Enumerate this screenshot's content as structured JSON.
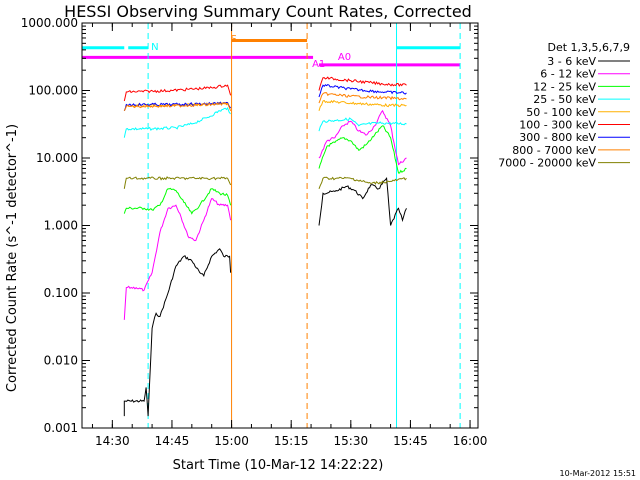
{
  "chart_data": {
    "type": "line",
    "title": "HESSI Observing Summary Count Rates, Corrected",
    "xlabel": "Start Time (10-Mar-12 14:22:22)",
    "ylabel": "Corrected Count Rate (s^-1 detector^-1)",
    "y_scale": "log",
    "ylim": [
      0.001,
      1000
    ],
    "xlim": [
      "14:22:22",
      "16:02:00"
    ],
    "x_ticks": [
      "14:30",
      "14:45",
      "15:00",
      "15:15",
      "15:30",
      "15:45",
      "16:00"
    ],
    "y_ticks": [
      "0.001",
      "0.010",
      "0.100",
      "1.000",
      "10.000",
      "100.000",
      "1000.000"
    ],
    "timestamp": "10-Mar-2012 15:51",
    "legend": {
      "position": "right",
      "title": "Det 1,3,5,6,7,9",
      "entries": [
        {
          "label": "3 - 6 keV",
          "color": "#000000"
        },
        {
          "label": "6 - 12 keV",
          "color": "#ff00ff"
        },
        {
          "label": "12 - 25 keV",
          "color": "#00ff00"
        },
        {
          "label": "25 - 50 keV",
          "color": "#00ffff"
        },
        {
          "label": "50 - 100 keV",
          "color": "#ffb000"
        },
        {
          "label": "100 - 300 keV",
          "color": "#ff0000"
        },
        {
          "label": "300 - 800 keV",
          "color": "#0000ff"
        },
        {
          "label": "800 - 7000 keV",
          "color": "#ff8000"
        },
        {
          "label": "7000 - 20000 keV",
          "color": "#808000"
        }
      ]
    },
    "annotations": [
      {
        "text": "N",
        "at": "14:39:00",
        "color": "#00ffff"
      },
      {
        "text": "S",
        "at": "14:59:00",
        "color": "#ff8000"
      },
      {
        "text": "A1",
        "at": "15:19:30",
        "color": "#ff00ff"
      },
      {
        "text": "A0",
        "at": "15:26:00",
        "color": "#ff00ff"
      }
    ],
    "state_bars": [
      {
        "color": "#00ffff",
        "value": 430,
        "segments": [
          [
            "14:22:22",
            "14:33:00"
          ],
          [
            "14:34:00",
            "14:39:00"
          ],
          [
            "15:41:30",
            "15:57:30"
          ]
        ]
      },
      {
        "color": "#ff8000",
        "value": 550,
        "segments": [
          [
            "15:00:00",
            "15:19:00"
          ]
        ]
      },
      {
        "color": "#ff00ff",
        "value": 310,
        "segments": [
          [
            "14:22:22",
            "15:20:30"
          ]
        ]
      },
      {
        "color": "#ff00ff",
        "value": 240,
        "segments": [
          [
            "15:22:00",
            "15:57:30"
          ]
        ]
      }
    ],
    "markers": [
      {
        "at": "14:22:22",
        "color": "#00ffff",
        "style": "solid"
      },
      {
        "at": "14:39:00",
        "color": "#00ffff",
        "style": "dashed"
      },
      {
        "at": "15:00:00",
        "color": "#ff8000",
        "style": "solid"
      },
      {
        "at": "15:19:00",
        "color": "#ff8000",
        "style": "dashed"
      },
      {
        "at": "15:41:30",
        "color": "#00ffff",
        "style": "solid"
      },
      {
        "at": "15:57:30",
        "color": "#00ffff",
        "style": "dashed"
      }
    ],
    "series": [
      {
        "name": "3 - 6 keV",
        "color": "#000000",
        "segments": [
          [
            [
              "14:33:00",
              0.0015
            ],
            [
              "14:33:00",
              0.0025
            ],
            [
              "14:38:00",
              0.0025
            ],
            [
              "14:38:30",
              0.004
            ],
            [
              "14:39:00",
              0.0015
            ],
            [
              "14:40:00",
              0.03
            ],
            [
              "14:41:00",
              0.05
            ],
            [
              "14:42:00",
              0.045
            ],
            [
              "14:44:00",
              0.1
            ],
            [
              "14:46:00",
              0.25
            ],
            [
              "14:48:00",
              0.35
            ],
            [
              "14:50:00",
              0.3
            ],
            [
              "14:52:00",
              0.2
            ],
            [
              "14:53:00",
              0.18
            ],
            [
              "14:55:00",
              0.35
            ],
            [
              "14:57:00",
              0.45
            ],
            [
              "14:58:00",
              0.35
            ],
            [
              "14:59:30",
              0.35
            ],
            [
              "14:59:45",
              0.2
            ]
          ],
          [
            [
              "15:22:00",
              1.0
            ],
            [
              "15:23:00",
              3.0
            ],
            [
              "15:26:00",
              3.2
            ],
            [
              "15:29:00",
              3.8
            ],
            [
              "15:31:00",
              3.3
            ],
            [
              "15:33:00",
              2.5
            ],
            [
              "15:35:00",
              4.0
            ],
            [
              "15:37:00",
              3.5
            ],
            [
              "15:39:00",
              5.0
            ],
            [
              "15:40:00",
              1.0
            ],
            [
              "15:42:00",
              1.8
            ],
            [
              "15:43:00",
              1.2
            ],
            [
              "15:44:00",
              1.8
            ]
          ]
        ]
      },
      {
        "name": "6 - 12 keV",
        "color": "#ff00ff",
        "segments": [
          [
            [
              "14:33:00",
              0.04
            ],
            [
              "14:33:30",
              0.12
            ],
            [
              "14:36:00",
              0.12
            ],
            [
              "14:38:00",
              0.11
            ],
            [
              "14:40:00",
              0.2
            ],
            [
              "14:42:00",
              0.8
            ],
            [
              "14:44:00",
              1.8
            ],
            [
              "14:46:00",
              2.0
            ],
            [
              "14:47:00",
              1.5
            ],
            [
              "14:49:00",
              0.7
            ],
            [
              "14:51:00",
              0.6
            ],
            [
              "14:53:00",
              1.2
            ],
            [
              "14:55:00",
              2.5
            ],
            [
              "14:57:00",
              2.0
            ],
            [
              "14:59:00",
              2.0
            ],
            [
              "14:59:45",
              1.2
            ]
          ],
          [
            [
              "15:22:00",
              10.0
            ],
            [
              "15:24:00",
              18.0
            ],
            [
              "15:26:00",
              20.0
            ],
            [
              "15:28:00",
              30.0
            ],
            [
              "15:30:00",
              35.0
            ],
            [
              "15:32:00",
              25.0
            ],
            [
              "15:34:00",
              22.0
            ],
            [
              "15:36:00",
              30.0
            ],
            [
              "15:38:00",
              50.0
            ],
            [
              "15:40:00",
              30.0
            ],
            [
              "15:42:00",
              8.0
            ],
            [
              "15:44:00",
              10.0
            ]
          ]
        ]
      },
      {
        "name": "12 - 25 keV",
        "color": "#00ff00",
        "segments": [
          [
            [
              "14:33:00",
              1.5
            ],
            [
              "14:33:30",
              1.8
            ],
            [
              "14:38:00",
              1.8
            ],
            [
              "14:40:00",
              1.7
            ],
            [
              "14:42:00",
              2.0
            ],
            [
              "14:44:00",
              3.5
            ],
            [
              "14:46:00",
              3.3
            ],
            [
              "14:48:00",
              2.2
            ],
            [
              "14:50:00",
              1.5
            ],
            [
              "14:52:00",
              2.0
            ],
            [
              "14:55:00",
              3.5
            ],
            [
              "14:57:00",
              3.0
            ],
            [
              "14:59:00",
              2.8
            ],
            [
              "14:59:45",
              2.0
            ]
          ],
          [
            [
              "15:22:00",
              7.0
            ],
            [
              "15:24:00",
              15.0
            ],
            [
              "15:26:00",
              17.0
            ],
            [
              "15:28:00",
              20.0
            ],
            [
              "15:30:00",
              18.0
            ],
            [
              "15:32:00",
              13.0
            ],
            [
              "15:34:00",
              16.0
            ],
            [
              "15:36:00",
              22.0
            ],
            [
              "15:38:00",
              30.0
            ],
            [
              "15:40:00",
              20.0
            ],
            [
              "15:42:00",
              6.0
            ],
            [
              "15:44:00",
              7.0
            ]
          ]
        ]
      },
      {
        "name": "25 - 50 keV",
        "color": "#00ffff",
        "segments": [
          [
            [
              "14:33:00",
              20.0
            ],
            [
              "14:33:30",
              27.0
            ],
            [
              "14:40:00",
              27.0
            ],
            [
              "14:46:00",
              28.0
            ],
            [
              "14:50:00",
              32.0
            ],
            [
              "14:54:00",
              40.0
            ],
            [
              "14:57:00",
              50.0
            ],
            [
              "14:59:00",
              55.0
            ],
            [
              "14:59:45",
              45.0
            ]
          ],
          [
            [
              "15:22:00",
              25.0
            ],
            [
              "15:23:00",
              35.0
            ],
            [
              "15:26:00",
              36.0
            ],
            [
              "15:30:00",
              38.0
            ],
            [
              "15:32:00",
              30.0
            ],
            [
              "15:34:00",
              32.0
            ],
            [
              "15:38:00",
              33.0
            ],
            [
              "15:44:00",
              32.0
            ]
          ]
        ]
      },
      {
        "name": "50 - 100 keV",
        "color": "#ffb000",
        "segments": [
          [
            [
              "14:33:00",
              50.0
            ],
            [
              "14:33:30",
              60.0
            ],
            [
              "14:45:00",
              60.0
            ],
            [
              "14:55:00",
              63.0
            ],
            [
              "14:59:00",
              66.0
            ],
            [
              "14:59:45",
              55.0
            ]
          ],
          [
            [
              "15:22:00",
              50.0
            ],
            [
              "15:23:00",
              70.0
            ],
            [
              "15:30:00",
              65.0
            ],
            [
              "15:40:00",
              60.0
            ],
            [
              "15:44:00",
              60.0
            ]
          ]
        ]
      },
      {
        "name": "100 - 300 keV",
        "color": "#ff0000",
        "segments": [
          [
            [
              "14:33:00",
              70.0
            ],
            [
              "14:33:30",
              95.0
            ],
            [
              "14:45:00",
              100.0
            ],
            [
              "14:55:00",
              110.0
            ],
            [
              "14:59:00",
              120.0
            ],
            [
              "14:59:45",
              85.0
            ]
          ],
          [
            [
              "15:22:00",
              100.0
            ],
            [
              "15:23:00",
              155.0
            ],
            [
              "15:30:00",
              140.0
            ],
            [
              "15:38:00",
              125.0
            ],
            [
              "15:44:00",
              120.0
            ]
          ]
        ]
      },
      {
        "name": "300 - 800 keV",
        "color": "#0000ff",
        "segments": [
          [
            [
              "14:33:00",
              50.0
            ],
            [
              "14:33:30",
              62.0
            ],
            [
              "14:45:00",
              62.0
            ],
            [
              "14:55:00",
              64.0
            ],
            [
              "14:59:00",
              66.0
            ],
            [
              "14:59:45",
              55.0
            ]
          ],
          [
            [
              "15:22:00",
              80.0
            ],
            [
              "15:23:00",
              120.0
            ],
            [
              "15:30:00",
              105.0
            ],
            [
              "15:38:00",
              95.0
            ],
            [
              "15:44:00",
              92.0
            ]
          ]
        ]
      },
      {
        "name": "800 - 7000 keV",
        "color": "#ff8000",
        "segments": [
          [
            [
              "14:33:00",
              50.0
            ],
            [
              "14:33:30",
              58.0
            ],
            [
              "14:45:00",
              59.0
            ],
            [
              "14:55:00",
              62.0
            ],
            [
              "14:59:00",
              64.0
            ],
            [
              "14:59:45",
              50.0
            ]
          ],
          [
            [
              "15:22:00",
              65.0
            ],
            [
              "15:23:00",
              90.0
            ],
            [
              "15:30:00",
              82.0
            ],
            [
              "15:38:00",
              78.0
            ],
            [
              "15:44:00",
              75.0
            ]
          ]
        ]
      },
      {
        "name": "7000 - 20000 keV",
        "color": "#808000",
        "segments": [
          [
            [
              "14:33:00",
              3.5
            ],
            [
              "14:33:30",
              5.0
            ],
            [
              "14:45:00",
              5.0
            ],
            [
              "14:55:00",
              5.0
            ],
            [
              "14:59:00",
              5.0
            ],
            [
              "14:59:45",
              4.0
            ]
          ],
          [
            [
              "15:22:00",
              3.5
            ],
            [
              "15:23:00",
              5.0
            ],
            [
              "15:30:00",
              5.0
            ],
            [
              "15:35:00",
              4.2
            ],
            [
              "15:40:00",
              4.5
            ],
            [
              "15:44:00",
              5.0
            ]
          ]
        ]
      }
    ]
  }
}
